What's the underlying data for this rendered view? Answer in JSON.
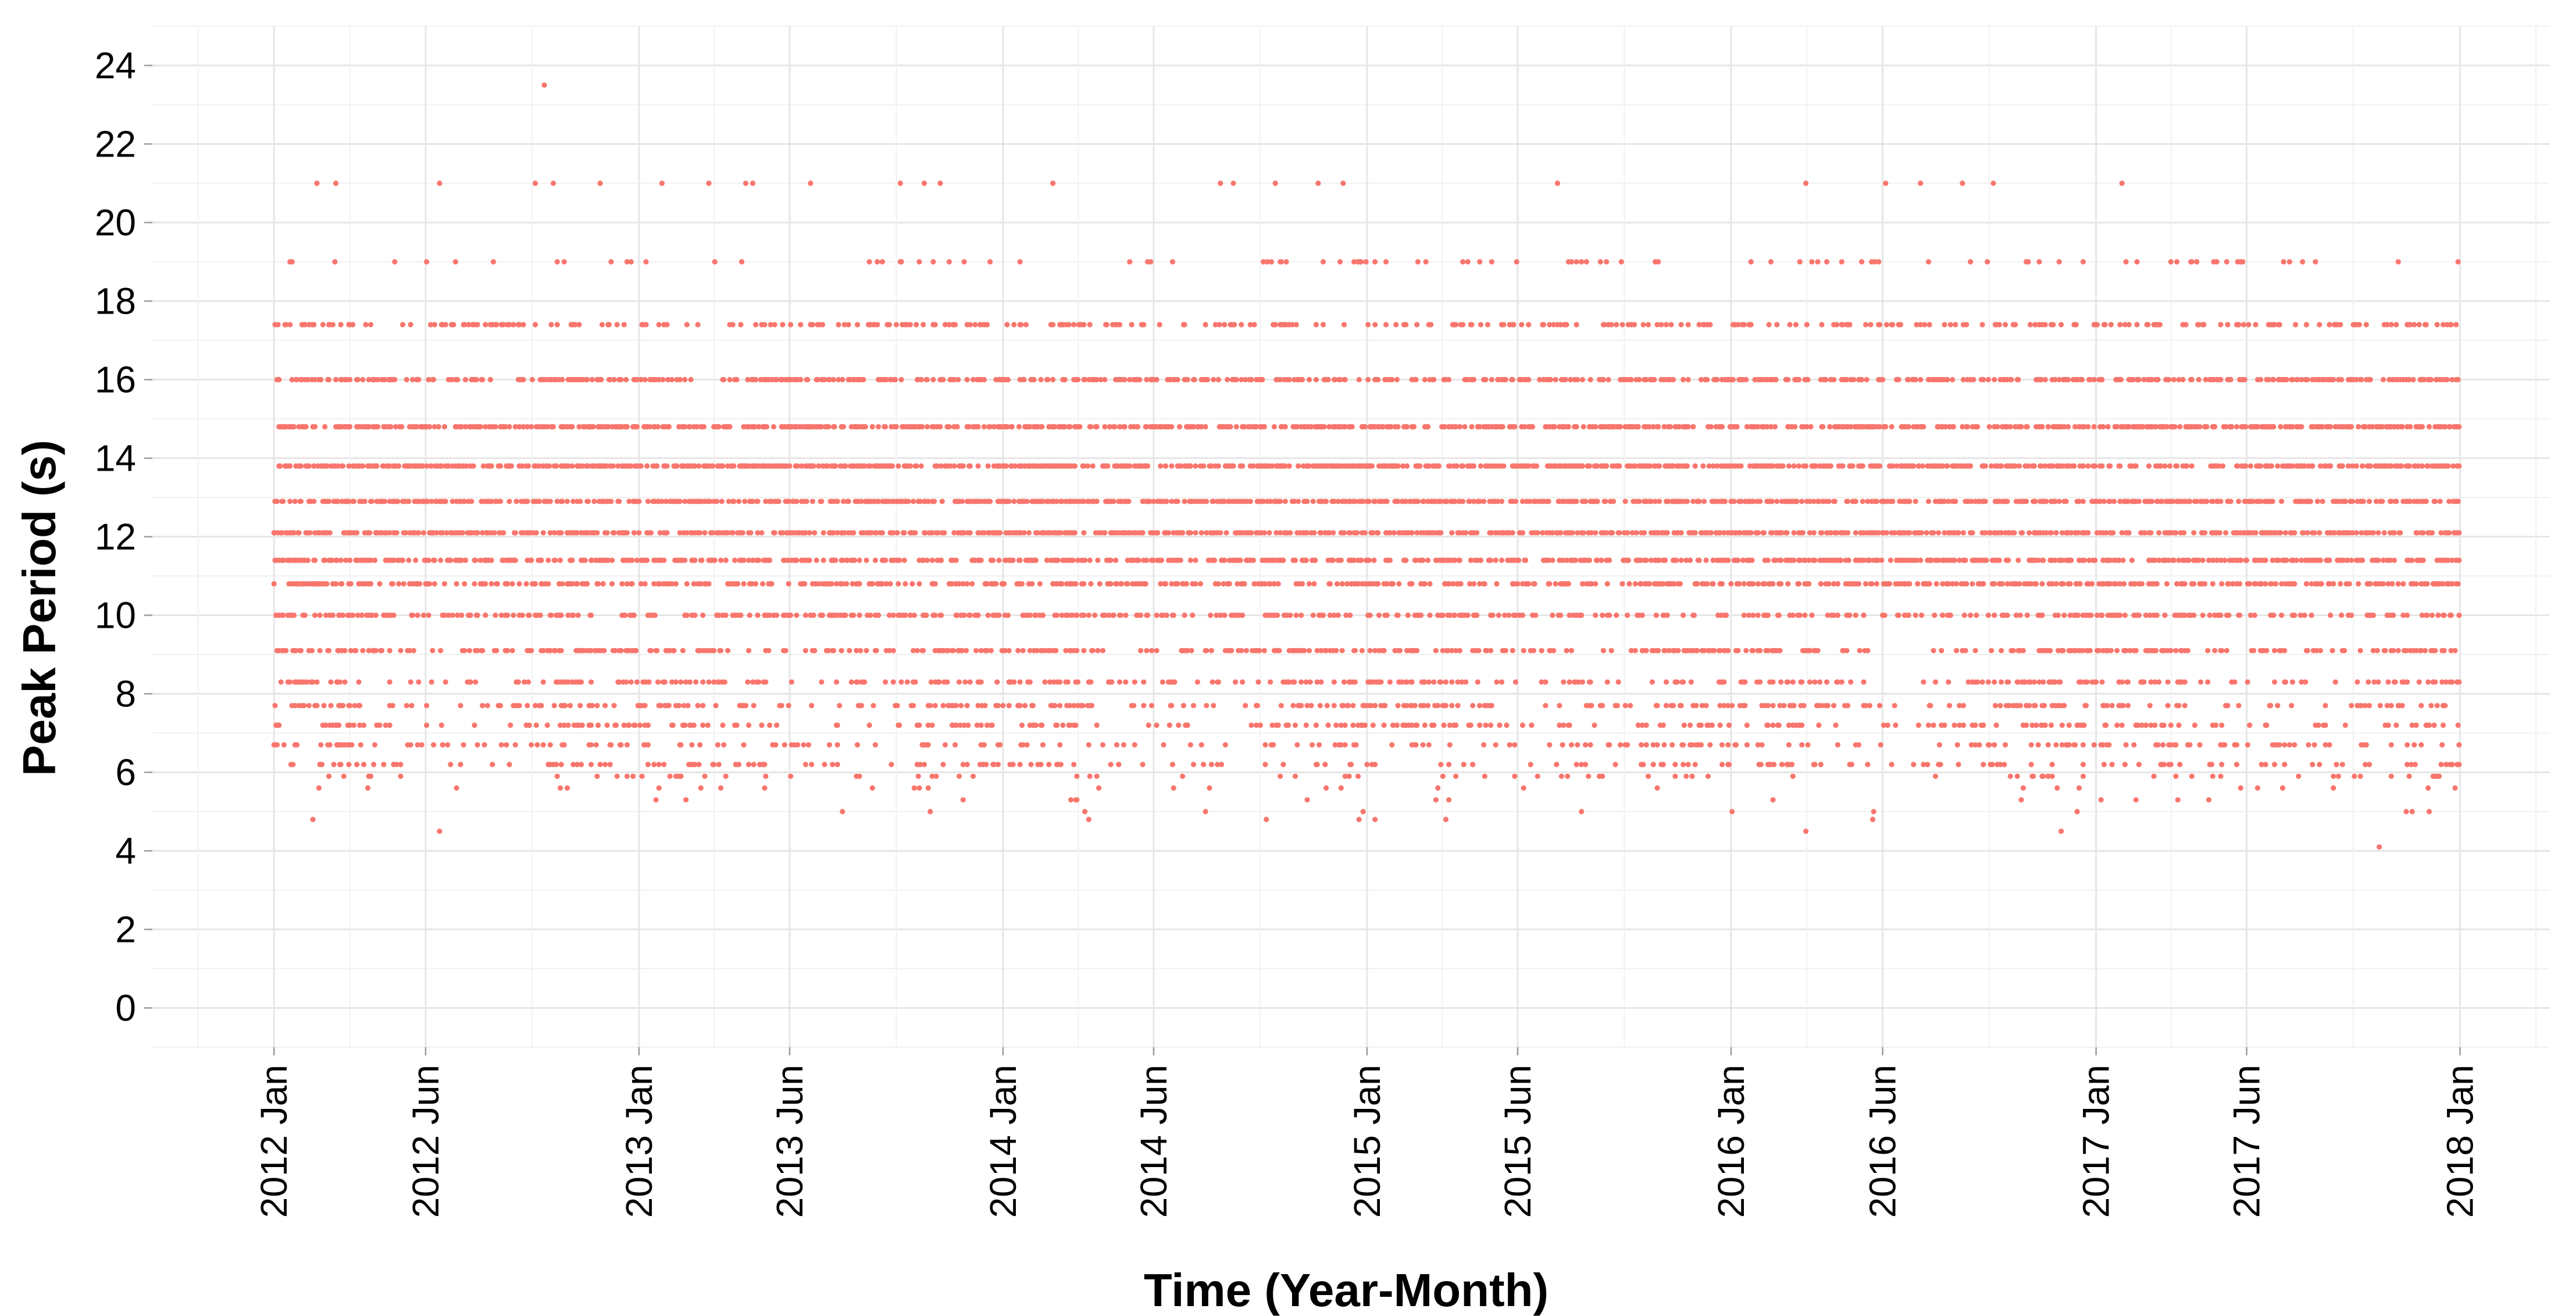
{
  "chart_data": {
    "type": "scatter",
    "title": "",
    "xlabel": "Time (Year-Month)",
    "ylabel": "Peak Period (s)",
    "xlim": [
      "2011-09-01",
      "2018-04-01"
    ],
    "ylim": [
      -1,
      25
    ],
    "grid": true,
    "legend": "none",
    "color": "#f8766d",
    "x_ticks": [
      "2012 Jan",
      "2012 Jun",
      "2013 Jan",
      "2013 Jun",
      "2014 Jan",
      "2014 Jun",
      "2015 Jan",
      "2015 Jun",
      "2016 Jan",
      "2016 Jun",
      "2017 Jan",
      "2017 Jun",
      "2018 Jan"
    ],
    "x_tick_dates": [
      "2012-01-01",
      "2012-06-01",
      "2013-01-01",
      "2013-06-01",
      "2014-01-01",
      "2014-06-01",
      "2015-01-01",
      "2015-06-01",
      "2016-01-01",
      "2016-06-01",
      "2017-01-01",
      "2017-06-01",
      "2018-01-01"
    ],
    "y_ticks": [
      0,
      2,
      4,
      6,
      8,
      10,
      12,
      14,
      16,
      18,
      20,
      22,
      24
    ],
    "x_range": [
      "2012-01-01",
      "2017-12-31"
    ],
    "period_levels": [
      {
        "y": 23.5,
        "density": 0.003
      },
      {
        "y": 21.0,
        "density": 0.04
      },
      {
        "y": 19.0,
        "density": 0.14
      },
      {
        "y": 17.4,
        "density": 0.45
      },
      {
        "y": 16.0,
        "density": 0.8
      },
      {
        "y": 14.8,
        "density": 0.97
      },
      {
        "y": 13.8,
        "density": 1.0
      },
      {
        "y": 12.9,
        "density": 1.0
      },
      {
        "y": 12.1,
        "density": 0.95
      },
      {
        "y": 11.4,
        "density": 0.85
      },
      {
        "y": 10.8,
        "density": 0.7
      },
      {
        "y": 10.0,
        "density": 0.6
      },
      {
        "y": 9.1,
        "density": 0.6
      },
      {
        "y": 8.3,
        "density": 0.45
      },
      {
        "y": 7.7,
        "density": 0.4
      },
      {
        "y": 7.2,
        "density": 0.35
      },
      {
        "y": 6.7,
        "density": 0.3
      },
      {
        "y": 6.2,
        "density": 0.25
      },
      {
        "y": 5.9,
        "density": 0.08
      },
      {
        "y": 5.6,
        "density": 0.05
      },
      {
        "y": 5.3,
        "density": 0.03
      },
      {
        "y": 5.0,
        "density": 0.015
      },
      {
        "y": 4.8,
        "density": 0.006
      },
      {
        "y": 4.5,
        "density": 0.002
      },
      {
        "y": 4.1,
        "density": 0.002
      }
    ]
  }
}
